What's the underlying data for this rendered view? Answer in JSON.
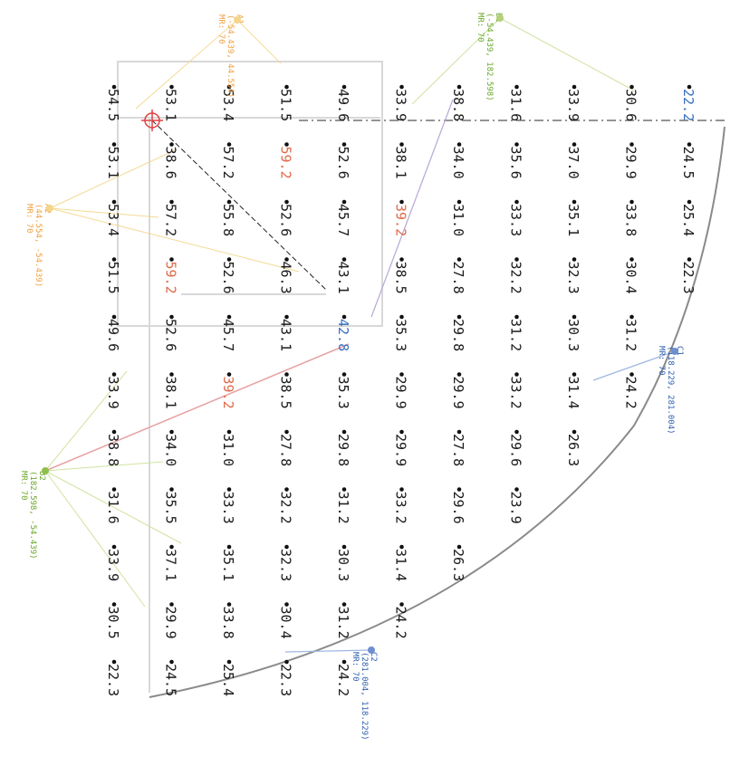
{
  "grid_rows": [
    [
      "54.5",
      "53.1",
      "53.4",
      "51.5",
      "49.6",
      "33.9",
      "38.8",
      "31.6",
      "33.9",
      "30.5",
      "22.3"
    ],
    [
      "53.1",
      "38.6",
      "57.2",
      "59.2",
      "52.6",
      "38.1",
      "34.0",
      "35.5",
      "37.1",
      "29.9",
      "24.5"
    ],
    [
      "53.4",
      "57.2",
      "55.8",
      "52.6",
      "45.7",
      "39.2",
      "31.0",
      "33.3",
      "35.1",
      "33.8",
      "25.4"
    ],
    [
      "51.5",
      "59.2",
      "52.6",
      "46.3",
      "43.1",
      "38.5",
      "27.8",
      "32.2",
      "32.3",
      "30.4",
      "22.3"
    ],
    [
      "49.6",
      "52.6",
      "45.7",
      "43.1",
      "42.8",
      "35.3",
      "29.8",
      "31.2",
      "30.3",
      "31.2",
      "24.2"
    ],
    [
      "33.9",
      "38.1",
      "39.2",
      "38.5",
      "35.3",
      "29.9",
      "29.9",
      "33.2",
      "31.4",
      "24.2",
      ""
    ],
    [
      "38.8",
      "34.0",
      "31.0",
      "27.8",
      "29.8",
      "29.9",
      "27.8",
      "29.6",
      "26.3",
      "",
      ""
    ],
    [
      "31.6",
      "35.6",
      "33.3",
      "32.2",
      "31.2",
      "33.2",
      "29.6",
      "23.9",
      "",
      "",
      ""
    ],
    [
      "33.9",
      "37.0",
      "35.1",
      "32.3",
      "30.3",
      "31.4",
      "26.3",
      "",
      "",
      "",
      ""
    ],
    [
      "30.6",
      "29.9",
      "33.8",
      "30.4",
      "31.2",
      "24.2",
      "",
      "",
      "",
      "",
      ""
    ],
    [
      "22.2",
      "24.5",
      "25.4",
      "22.3",
      "",
      "",
      "",
      "",
      "",
      "",
      ""
    ]
  ],
  "hot_values": [
    "59.2",
    "39.2"
  ],
  "cool_values": [
    "42.8",
    "22.2"
  ],
  "markers": {
    "a1": {
      "id": "A1",
      "coords": "(-54.439, 44.554)",
      "mr": "MR: 70"
    },
    "a2": {
      "id": "A2",
      "coords": "(44.554, -54.439)",
      "mr": "MR: 70"
    },
    "b1": {
      "id": "B1",
      "coords": "(-54.439, 182.598)",
      "mr": "MR: 70"
    },
    "b2": {
      "id": "B2",
      "coords": "(182.598, -54.439)",
      "mr": "MR: 70"
    },
    "c1": {
      "id": "C1",
      "coords": "(118.229, 281.004)",
      "mr": "MR: 70"
    },
    "c2": {
      "id": "C2",
      "coords": "(281.004, 118.229)",
      "mr": "MR: 70"
    }
  },
  "colors": {
    "orange": "#f0a040",
    "green": "#6aa82a",
    "blue": "#2e5fb0",
    "red": "#e04040"
  }
}
